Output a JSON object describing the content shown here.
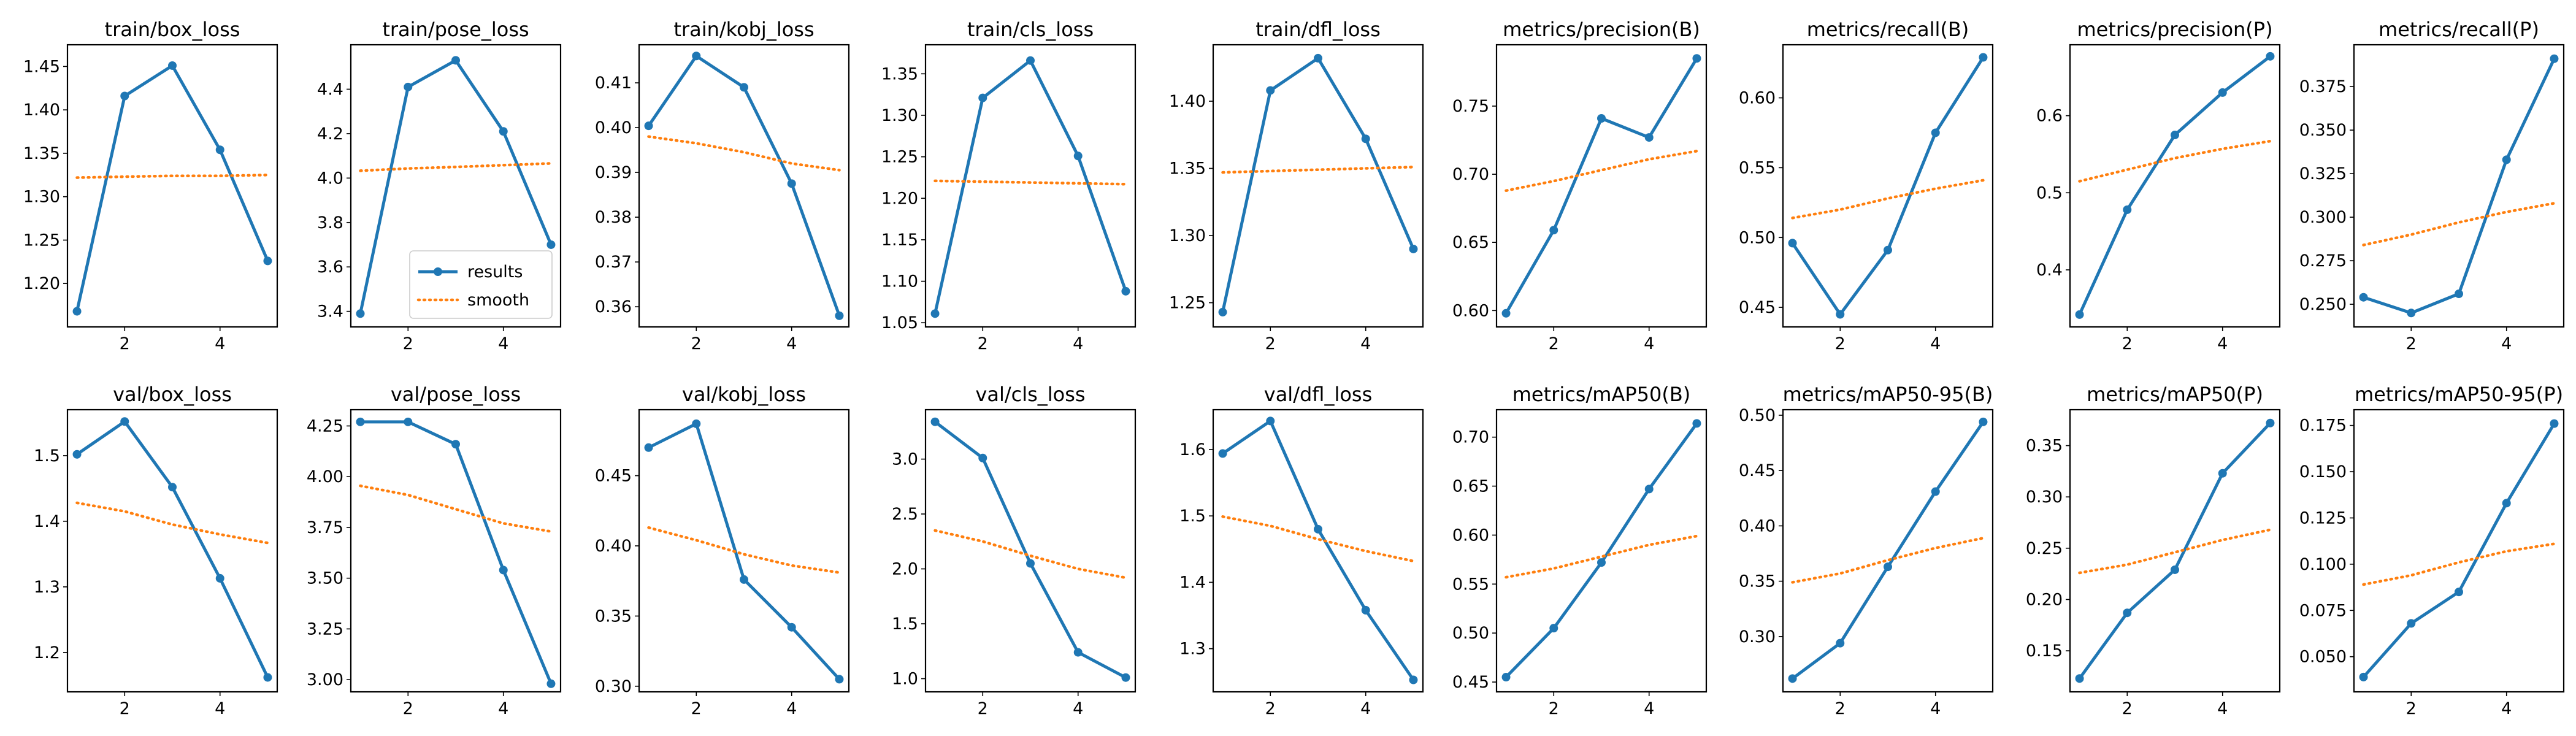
{
  "colors": {
    "results": "#1f77b4",
    "smooth": "#ff7f0e"
  },
  "legend": {
    "results_label": "results",
    "smooth_label": "smooth",
    "panel_index": 1
  },
  "chart_data": [
    {
      "type": "line",
      "title": "train/box_loss",
      "x": [
        1,
        2,
        3,
        4,
        5
      ],
      "ylim": [
        1.15,
        1.475
      ],
      "xticks": [
        2,
        4
      ],
      "yticks": [
        "1.20",
        "1.25",
        "1.30",
        "1.35",
        "1.40",
        "1.45"
      ],
      "series": [
        {
          "name": "results",
          "values": [
            1.168,
            1.416,
            1.451,
            1.354,
            1.226
          ]
        },
        {
          "name": "smooth",
          "values": [
            1.322,
            1.323,
            1.324,
            1.324,
            1.325
          ]
        }
      ]
    },
    {
      "type": "line",
      "title": "train/pose_loss",
      "x": [
        1,
        2,
        3,
        4,
        5
      ],
      "ylim": [
        3.33,
        4.6
      ],
      "xticks": [
        2,
        4
      ],
      "yticks": [
        "3.4",
        "3.6",
        "3.8",
        "4.0",
        "4.2",
        "4.4"
      ],
      "series": [
        {
          "name": "results",
          "values": [
            3.39,
            4.41,
            4.53,
            4.21,
            3.7
          ]
        },
        {
          "name": "smooth",
          "values": [
            4.033,
            4.043,
            4.05,
            4.058,
            4.066
          ]
        }
      ]
    },
    {
      "type": "line",
      "title": "train/kobj_loss",
      "x": [
        1,
        2,
        3,
        4,
        5
      ],
      "ylim": [
        0.3555,
        0.4185
      ],
      "xticks": [
        2,
        4
      ],
      "yticks": [
        "0.36",
        "0.37",
        "0.38",
        "0.39",
        "0.40",
        "0.41"
      ],
      "series": [
        {
          "name": "results",
          "values": [
            0.4004,
            0.416,
            0.409,
            0.3875,
            0.358
          ]
        },
        {
          "name": "smooth",
          "values": [
            0.398,
            0.3965,
            0.3945,
            0.392,
            0.3905
          ]
        }
      ]
    },
    {
      "type": "line",
      "title": "train/cls_loss",
      "x": [
        1,
        2,
        3,
        4,
        5
      ],
      "ylim": [
        1.045,
        1.385
      ],
      "xticks": [
        2,
        4
      ],
      "yticks": [
        "1.05",
        "1.10",
        "1.15",
        "1.20",
        "1.25",
        "1.30",
        "1.35"
      ],
      "series": [
        {
          "name": "results",
          "values": [
            1.061,
            1.321,
            1.366,
            1.251,
            1.088
          ]
        },
        {
          "name": "smooth",
          "values": [
            1.221,
            1.22,
            1.219,
            1.218,
            1.217
          ]
        }
      ]
    },
    {
      "type": "line",
      "title": "train/dfl_loss",
      "x": [
        1,
        2,
        3,
        4,
        5
      ],
      "ylim": [
        1.232,
        1.442
      ],
      "xticks": [
        2,
        4
      ],
      "yticks": [
        "1.25",
        "1.30",
        "1.35",
        "1.40"
      ],
      "series": [
        {
          "name": "results",
          "values": [
            1.243,
            1.408,
            1.432,
            1.372,
            1.29
          ]
        },
        {
          "name": "smooth",
          "values": [
            1.347,
            1.348,
            1.349,
            1.35,
            1.351
          ]
        }
      ]
    },
    {
      "type": "line",
      "title": "metrics/precision(B)",
      "x": [
        1,
        2,
        3,
        4,
        5
      ],
      "ylim": [
        0.588,
        0.795
      ],
      "xticks": [
        2,
        4
      ],
      "yticks": [
        "0.60",
        "0.65",
        "0.70",
        "0.75"
      ],
      "series": [
        {
          "name": "results",
          "values": [
            0.598,
            0.659,
            0.741,
            0.727,
            0.785
          ]
        },
        {
          "name": "smooth",
          "values": [
            0.688,
            0.695,
            0.703,
            0.711,
            0.717
          ]
        }
      ]
    },
    {
      "type": "line",
      "title": "metrics/recall(B)",
      "x": [
        1,
        2,
        3,
        4,
        5
      ],
      "ylim": [
        0.436,
        0.638
      ],
      "xticks": [
        2,
        4
      ],
      "yticks": [
        "0.45",
        "0.50",
        "0.55",
        "0.60"
      ],
      "series": [
        {
          "name": "results",
          "values": [
            0.496,
            0.445,
            0.491,
            0.575,
            0.629
          ]
        },
        {
          "name": "smooth",
          "values": [
            0.514,
            0.52,
            0.528,
            0.535,
            0.541
          ]
        }
      ]
    },
    {
      "type": "line",
      "title": "metrics/precision(P)",
      "x": [
        1,
        2,
        3,
        4,
        5
      ],
      "ylim": [
        0.326,
        0.692
      ],
      "xticks": [
        2,
        4
      ],
      "yticks": [
        "0.4",
        "0.5",
        "0.6"
      ],
      "series": [
        {
          "name": "results",
          "values": [
            0.342,
            0.478,
            0.575,
            0.63,
            0.677
          ]
        },
        {
          "name": "smooth",
          "values": [
            0.515,
            0.53,
            0.545,
            0.557,
            0.567
          ]
        }
      ]
    },
    {
      "type": "line",
      "title": "metrics/recall(P)",
      "x": [
        1,
        2,
        3,
        4,
        5
      ],
      "ylim": [
        0.237,
        0.399
      ],
      "xticks": [
        2,
        4
      ],
      "yticks": [
        "0.250",
        "0.275",
        "0.300",
        "0.325",
        "0.350",
        "0.375"
      ],
      "series": [
        {
          "name": "results",
          "values": [
            0.254,
            0.245,
            0.256,
            0.333,
            0.391
          ]
        },
        {
          "name": "smooth",
          "values": [
            0.284,
            0.29,
            0.297,
            0.303,
            0.308
          ]
        }
      ]
    },
    {
      "type": "line",
      "title": "val/box_loss",
      "x": [
        1,
        2,
        3,
        4,
        5
      ],
      "ylim": [
        1.14,
        1.57
      ],
      "xticks": [
        2,
        4
      ],
      "yticks": [
        "1.2",
        "1.3",
        "1.4",
        "1.5"
      ],
      "series": [
        {
          "name": "results",
          "values": [
            1.502,
            1.552,
            1.452,
            1.313,
            1.162
          ]
        },
        {
          "name": "smooth",
          "values": [
            1.428,
            1.415,
            1.395,
            1.38,
            1.367
          ]
        }
      ]
    },
    {
      "type": "line",
      "title": "val/pose_loss",
      "x": [
        1,
        2,
        3,
        4,
        5
      ],
      "ylim": [
        2.94,
        4.33
      ],
      "xticks": [
        2,
        4
      ],
      "yticks": [
        "3.00",
        "3.25",
        "3.50",
        "3.75",
        "4.00",
        "4.25"
      ],
      "series": [
        {
          "name": "results",
          "values": [
            4.27,
            4.27,
            4.16,
            3.54,
            2.98
          ]
        },
        {
          "name": "smooth",
          "values": [
            3.955,
            3.91,
            3.84,
            3.77,
            3.73
          ]
        }
      ]
    },
    {
      "type": "line",
      "title": "val/kobj_loss",
      "x": [
        1,
        2,
        3,
        4,
        5
      ],
      "ylim": [
        0.296,
        0.497
      ],
      "xticks": [
        2,
        4
      ],
      "yticks": [
        "0.30",
        "0.35",
        "0.40",
        "0.45"
      ],
      "series": [
        {
          "name": "results",
          "values": [
            0.47,
            0.487,
            0.376,
            0.342,
            0.305
          ]
        },
        {
          "name": "smooth",
          "values": [
            0.413,
            0.404,
            0.394,
            0.386,
            0.381
          ]
        }
      ]
    },
    {
      "type": "line",
      "title": "val/cls_loss",
      "x": [
        1,
        2,
        3,
        4,
        5
      ],
      "ylim": [
        0.88,
        3.45
      ],
      "xticks": [
        2,
        4
      ],
      "yticks": [
        "1.0",
        "1.5",
        "2.0",
        "2.5",
        "3.0"
      ],
      "series": [
        {
          "name": "results",
          "values": [
            3.34,
            3.01,
            2.05,
            1.24,
            1.01
          ]
        },
        {
          "name": "smooth",
          "values": [
            2.35,
            2.25,
            2.12,
            2.0,
            1.92
          ]
        }
      ]
    },
    {
      "type": "line",
      "title": "val/dfl_loss",
      "x": [
        1,
        2,
        3,
        4,
        5
      ],
      "ylim": [
        1.235,
        1.66
      ],
      "xticks": [
        2,
        4
      ],
      "yticks": [
        "1.3",
        "1.4",
        "1.5",
        "1.6"
      ],
      "series": [
        {
          "name": "results",
          "values": [
            1.594,
            1.643,
            1.48,
            1.358,
            1.253
          ]
        },
        {
          "name": "smooth",
          "values": [
            1.499,
            1.485,
            1.465,
            1.447,
            1.432
          ]
        }
      ]
    },
    {
      "type": "line",
      "title": "metrics/mAP50(B)",
      "x": [
        1,
        2,
        3,
        4,
        5
      ],
      "ylim": [
        0.44,
        0.728
      ],
      "xticks": [
        2,
        4
      ],
      "yticks": [
        "0.45",
        "0.50",
        "0.55",
        "0.60",
        "0.65",
        "0.70"
      ],
      "series": [
        {
          "name": "results",
          "values": [
            0.455,
            0.505,
            0.572,
            0.647,
            0.714
          ]
        },
        {
          "name": "smooth",
          "values": [
            0.557,
            0.566,
            0.578,
            0.59,
            0.599
          ]
        }
      ]
    },
    {
      "type": "line",
      "title": "metrics/mAP50-95(B)",
      "x": [
        1,
        2,
        3,
        4,
        5
      ],
      "ylim": [
        0.25,
        0.505
      ],
      "xticks": [
        2,
        4
      ],
      "yticks": [
        "0.30",
        "0.35",
        "0.40",
        "0.45",
        "0.50"
      ],
      "series": [
        {
          "name": "results",
          "values": [
            0.262,
            0.294,
            0.363,
            0.431,
            0.494
          ]
        },
        {
          "name": "smooth",
          "values": [
            0.349,
            0.357,
            0.369,
            0.38,
            0.389
          ]
        }
      ]
    },
    {
      "type": "line",
      "title": "metrics/mAP50(P)",
      "x": [
        1,
        2,
        3,
        4,
        5
      ],
      "ylim": [
        0.11,
        0.385
      ],
      "xticks": [
        2,
        4
      ],
      "yticks": [
        "0.15",
        "0.20",
        "0.25",
        "0.30",
        "0.35"
      ],
      "series": [
        {
          "name": "results",
          "values": [
            0.123,
            0.187,
            0.229,
            0.323,
            0.372
          ]
        },
        {
          "name": "smooth",
          "values": [
            0.226,
            0.234,
            0.246,
            0.258,
            0.268
          ]
        }
      ]
    },
    {
      "type": "line",
      "title": "metrics/mAP50-95(P)",
      "x": [
        1,
        2,
        3,
        4,
        5
      ],
      "ylim": [
        0.031,
        0.1835
      ],
      "xticks": [
        2,
        4
      ],
      "yticks": [
        "0.050",
        "0.075",
        "0.100",
        "0.125",
        "0.150",
        "0.175"
      ],
      "series": [
        {
          "name": "results",
          "values": [
            0.039,
            0.068,
            0.085,
            0.133,
            0.176
          ]
        },
        {
          "name": "smooth",
          "values": [
            0.089,
            0.094,
            0.101,
            0.107,
            0.111
          ]
        }
      ]
    }
  ]
}
